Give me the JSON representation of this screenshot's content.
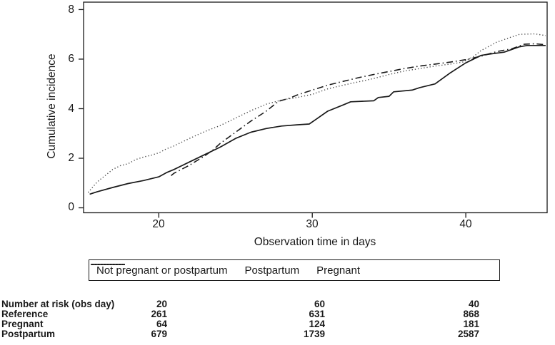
{
  "colors": {
    "line": "#1a1a1a",
    "dotted_line": "#4a4a4a",
    "border": "#1a1a1a",
    "background": "#ffffff",
    "text": "#1a1a1a"
  },
  "chart_data": {
    "type": "line",
    "title": "",
    "xlabel": "Observation time in days",
    "ylabel": "Cumulative incidence",
    "xlim": [
      15.1,
      45.3
    ],
    "ylim": [
      -0.2,
      8.3
    ],
    "x_ticks": [
      20,
      30,
      40
    ],
    "y_ticks": [
      0,
      2,
      4,
      6,
      8
    ],
    "grid": false,
    "legend_position": "bottom-box",
    "series": [
      {
        "name": "Not pregnant or postpartum",
        "style": "solid",
        "points": [
          [
            15.5,
            0.55
          ],
          [
            16,
            0.65
          ],
          [
            17,
            0.82
          ],
          [
            18,
            0.98
          ],
          [
            19,
            1.1
          ],
          [
            20,
            1.25
          ],
          [
            20.5,
            1.42
          ],
          [
            21,
            1.55
          ],
          [
            22,
            1.85
          ],
          [
            23,
            2.15
          ],
          [
            23.5,
            2.3
          ],
          [
            24,
            2.45
          ],
          [
            25,
            2.8
          ],
          [
            26,
            3.05
          ],
          [
            27,
            3.2
          ],
          [
            28,
            3.3
          ],
          [
            29,
            3.35
          ],
          [
            29.8,
            3.38
          ],
          [
            30.2,
            3.55
          ],
          [
            31,
            3.9
          ],
          [
            32,
            4.15
          ],
          [
            32.5,
            4.28
          ],
          [
            34,
            4.32
          ],
          [
            34.3,
            4.45
          ],
          [
            35,
            4.5
          ],
          [
            35.3,
            4.68
          ],
          [
            36.5,
            4.75
          ],
          [
            37,
            4.85
          ],
          [
            38,
            5.0
          ],
          [
            39,
            5.45
          ],
          [
            40,
            5.85
          ],
          [
            41,
            6.15
          ],
          [
            41.5,
            6.2
          ],
          [
            42.5,
            6.28
          ],
          [
            43.5,
            6.5
          ],
          [
            44,
            6.55
          ],
          [
            45.2,
            6.55
          ]
        ]
      },
      {
        "name": "Postpartum",
        "style": "dash-dot",
        "points": [
          [
            20.8,
            1.3
          ],
          [
            21,
            1.4
          ],
          [
            22,
            1.72
          ],
          [
            23,
            2.1
          ],
          [
            23.5,
            2.32
          ],
          [
            24,
            2.6
          ],
          [
            25,
            3.05
          ],
          [
            26,
            3.5
          ],
          [
            27,
            3.9
          ],
          [
            27.8,
            4.3
          ],
          [
            28.5,
            4.42
          ],
          [
            29,
            4.55
          ],
          [
            30,
            4.75
          ],
          [
            31,
            4.95
          ],
          [
            32,
            5.1
          ],
          [
            33,
            5.25
          ],
          [
            34,
            5.38
          ],
          [
            35,
            5.5
          ],
          [
            36,
            5.62
          ],
          [
            37,
            5.72
          ],
          [
            38,
            5.8
          ],
          [
            39,
            5.88
          ],
          [
            40,
            5.98
          ],
          [
            41,
            6.12
          ],
          [
            42,
            6.3
          ],
          [
            43,
            6.42
          ],
          [
            43.8,
            6.6
          ],
          [
            44.5,
            6.62
          ],
          [
            45.2,
            6.58
          ]
        ]
      },
      {
        "name": "Pregnant",
        "style": "dotted",
        "points": [
          [
            15.4,
            0.62
          ],
          [
            16,
            1.05
          ],
          [
            16.5,
            1.3
          ],
          [
            17,
            1.55
          ],
          [
            17.5,
            1.7
          ],
          [
            18,
            1.78
          ],
          [
            18.5,
            1.95
          ],
          [
            19,
            2.05
          ],
          [
            19.5,
            2.12
          ],
          [
            20,
            2.22
          ],
          [
            20.5,
            2.38
          ],
          [
            21,
            2.5
          ],
          [
            22,
            2.8
          ],
          [
            23,
            3.08
          ],
          [
            24,
            3.32
          ],
          [
            25,
            3.62
          ],
          [
            26,
            3.92
          ],
          [
            27,
            4.18
          ],
          [
            28,
            4.35
          ],
          [
            29,
            4.45
          ],
          [
            30,
            4.58
          ],
          [
            31,
            4.8
          ],
          [
            32,
            4.95
          ],
          [
            33,
            5.08
          ],
          [
            34,
            5.22
          ],
          [
            35,
            5.38
          ],
          [
            36,
            5.52
          ],
          [
            37,
            5.62
          ],
          [
            38,
            5.72
          ],
          [
            39,
            5.8
          ],
          [
            39.8,
            5.88
          ],
          [
            40.5,
            6.1
          ],
          [
            41,
            6.35
          ],
          [
            42,
            6.68
          ],
          [
            43,
            6.9
          ],
          [
            43.5,
            7.0
          ],
          [
            44.5,
            7.02
          ],
          [
            45.2,
            6.95
          ]
        ]
      }
    ]
  },
  "legend": {
    "items": [
      {
        "label": "Not pregnant or postpartum",
        "style": "solid"
      },
      {
        "label": "Postpartum",
        "style": "dash-dot"
      },
      {
        "label": "Pregnant",
        "style": "dotted"
      }
    ]
  },
  "risk_table": {
    "rows": [
      {
        "label": "Number at risk (obs day)",
        "values": [
          "20",
          "60",
          "40"
        ]
      },
      {
        "label": "Reference",
        "values": [
          "261",
          "631",
          "868"
        ]
      },
      {
        "label": "Pregnant",
        "values": [
          "64",
          "124",
          "181"
        ]
      },
      {
        "label": "Postpartum",
        "values": [
          "679",
          "1739",
          "2587"
        ]
      }
    ]
  }
}
